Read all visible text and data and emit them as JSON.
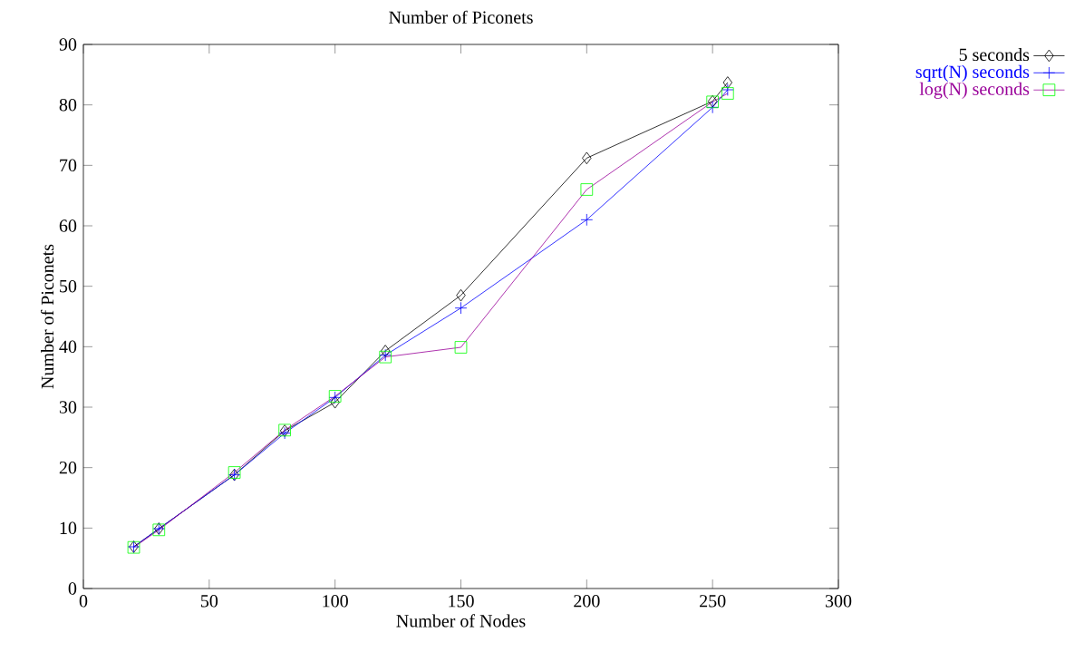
{
  "chart_data": {
    "type": "line",
    "title": "Number of Piconets",
    "xlabel": "Number of Nodes",
    "ylabel": "Number of Piconets",
    "x": [
      20,
      30,
      60,
      80,
      100,
      120,
      150,
      200,
      250,
      256
    ],
    "series": [
      {
        "name": "5 seconds",
        "color": "#000000",
        "marker": "diamond",
        "values": [
          6.9,
          9.9,
          18.8,
          26.1,
          30.8,
          39.3,
          48.5,
          71.2,
          80.6,
          83.7
        ]
      },
      {
        "name": "sqrt(N) seconds",
        "color": "#0000ff",
        "marker": "cross",
        "values": [
          6.9,
          9.9,
          18.8,
          25.7,
          31.6,
          38.6,
          46.4,
          61.0,
          79.6,
          82.5
        ]
      },
      {
        "name": "log(N) seconds",
        "color": "#990099",
        "marker": "square",
        "colors": [
          "#00ff00",
          "#00ff00",
          "#00ff00",
          "#00ff00",
          "#00ff00",
          "#00ff00",
          "#00ff00",
          "#00ff00",
          "#00ff00",
          "#00ff00"
        ],
        "values": [
          6.8,
          9.7,
          19.2,
          26.2,
          31.8,
          38.3,
          39.9,
          66.0,
          80.5,
          81.9
        ]
      }
    ],
    "xlim": [
      0,
      300
    ],
    "xticks": [
      0,
      50,
      100,
      150,
      200,
      250,
      300
    ],
    "ylim": [
      0,
      90
    ],
    "yticks": [
      0,
      10,
      20,
      30,
      40,
      50,
      60,
      70,
      80,
      90
    ],
    "grid": false,
    "legend": "top right",
    "line_style": "solid"
  }
}
